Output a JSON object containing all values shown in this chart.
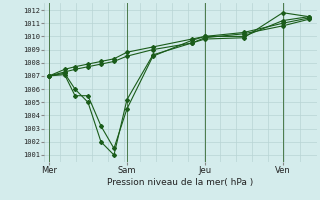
{
  "xlabel": "Pression niveau de la mer( hPa )",
  "bg_color": "#d4ecec",
  "grid_color": "#b8d8d8",
  "line_color": "#1a5c1a",
  "ylim": [
    1000.5,
    1012.5
  ],
  "yticks": [
    1001,
    1002,
    1003,
    1004,
    1005,
    1006,
    1007,
    1008,
    1009,
    1010,
    1011,
    1012
  ],
  "xtick_labels": [
    "Mer",
    "Sam",
    "Jeu",
    "Ven"
  ],
  "xtick_positions": [
    0,
    3,
    6,
    9
  ],
  "xlim": [
    -0.2,
    10.3
  ],
  "lines": [
    [
      0,
      1007.0,
      0.6,
      1007.2,
      1.0,
      1006.0,
      1.5,
      1005.0,
      2.0,
      1002.0,
      2.5,
      1001.0,
      3.0,
      1005.2,
      4.0,
      1008.6,
      5.5,
      1009.5,
      6.0,
      1009.8,
      7.5,
      1009.9,
      9.0,
      1011.8,
      10.0,
      1011.5
    ],
    [
      0,
      1007.0,
      0.6,
      1007.1,
      1.0,
      1005.5,
      1.5,
      1005.5,
      2.0,
      1003.2,
      2.5,
      1001.5,
      3.0,
      1004.5,
      4.0,
      1008.5,
      5.5,
      1009.7,
      6.0,
      1010.0,
      7.5,
      1010.0,
      9.0,
      1011.2,
      10.0,
      1011.5
    ],
    [
      0,
      1007.0,
      0.6,
      1007.5,
      1.0,
      1007.7,
      1.5,
      1007.9,
      2.0,
      1008.1,
      2.5,
      1008.3,
      3.0,
      1008.8,
      4.0,
      1009.2,
      5.5,
      1009.8,
      6.0,
      1010.0,
      7.5,
      1010.3,
      9.0,
      1011.0,
      10.0,
      1011.4
    ],
    [
      0,
      1007.0,
      0.6,
      1007.3,
      1.0,
      1007.5,
      1.5,
      1007.7,
      2.0,
      1007.9,
      2.5,
      1008.1,
      3.0,
      1008.5,
      4.0,
      1009.0,
      5.5,
      1009.5,
      6.0,
      1009.9,
      7.5,
      1010.2,
      9.0,
      1010.8,
      10.0,
      1011.3
    ]
  ],
  "vline_positions": [
    0,
    3,
    6,
    9
  ],
  "vline_color": "#4a7a4a",
  "minor_grid_color": "#b8d4d4"
}
